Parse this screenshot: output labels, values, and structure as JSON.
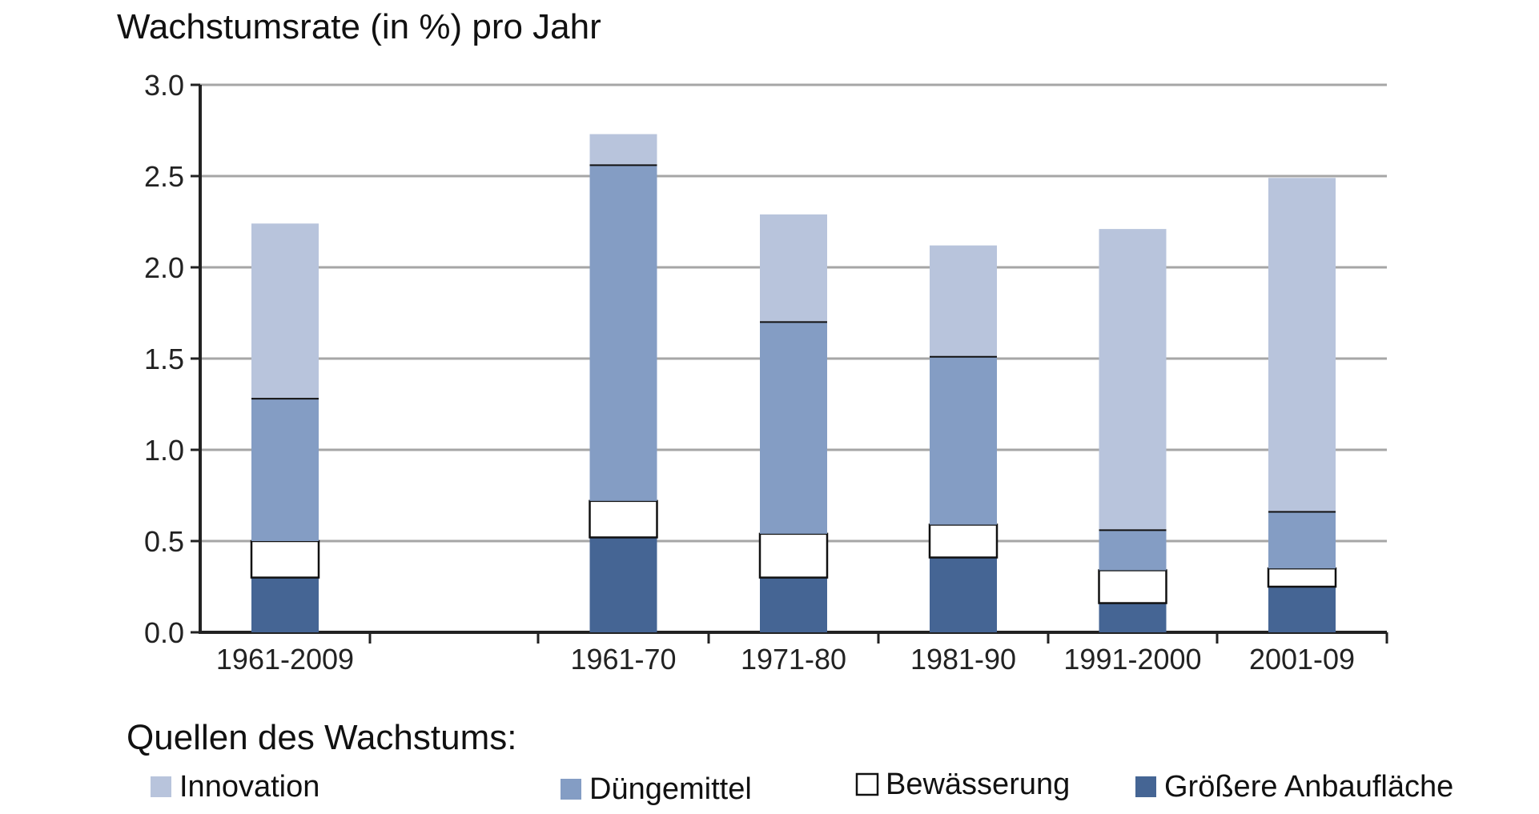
{
  "chart_data": {
    "type": "bar",
    "stacked": true,
    "title": "Wachstumsrate (in %) pro Jahr",
    "xlabel": "",
    "ylabel": "",
    "ylim": [
      0,
      3.0
    ],
    "yticks": [
      "0.0",
      "0.5",
      "1.0",
      "1.5",
      "2.0",
      "2.5",
      "3.0"
    ],
    "grid": true,
    "categories": [
      "1961-2009",
      "1961-70",
      "1971-80",
      "1981-90",
      "1991-2000",
      "2001-09"
    ],
    "legend_title": "Quellen des Wachstums:",
    "legend_position": "bottom",
    "series": [
      {
        "name": "Größere Anbaufläche",
        "color": "#456594",
        "values": [
          0.3,
          0.52,
          0.3,
          0.41,
          0.16,
          0.25
        ]
      },
      {
        "name": "Bewässerung",
        "color": "#ffffff",
        "values": [
          0.2,
          0.2,
          0.24,
          0.18,
          0.18,
          0.1
        ]
      },
      {
        "name": "Düngemittel",
        "color": "#849dc4",
        "values": [
          0.78,
          1.84,
          1.16,
          0.92,
          0.22,
          0.31
        ]
      },
      {
        "name": "Innovation",
        "color": "#b8c4dc",
        "values": [
          0.96,
          0.17,
          0.59,
          0.61,
          1.65,
          1.83
        ]
      }
    ],
    "legend_order": [
      "Innovation",
      "Düngemittel",
      "Bewässerung",
      "Größere Anbaufläche"
    ]
  }
}
